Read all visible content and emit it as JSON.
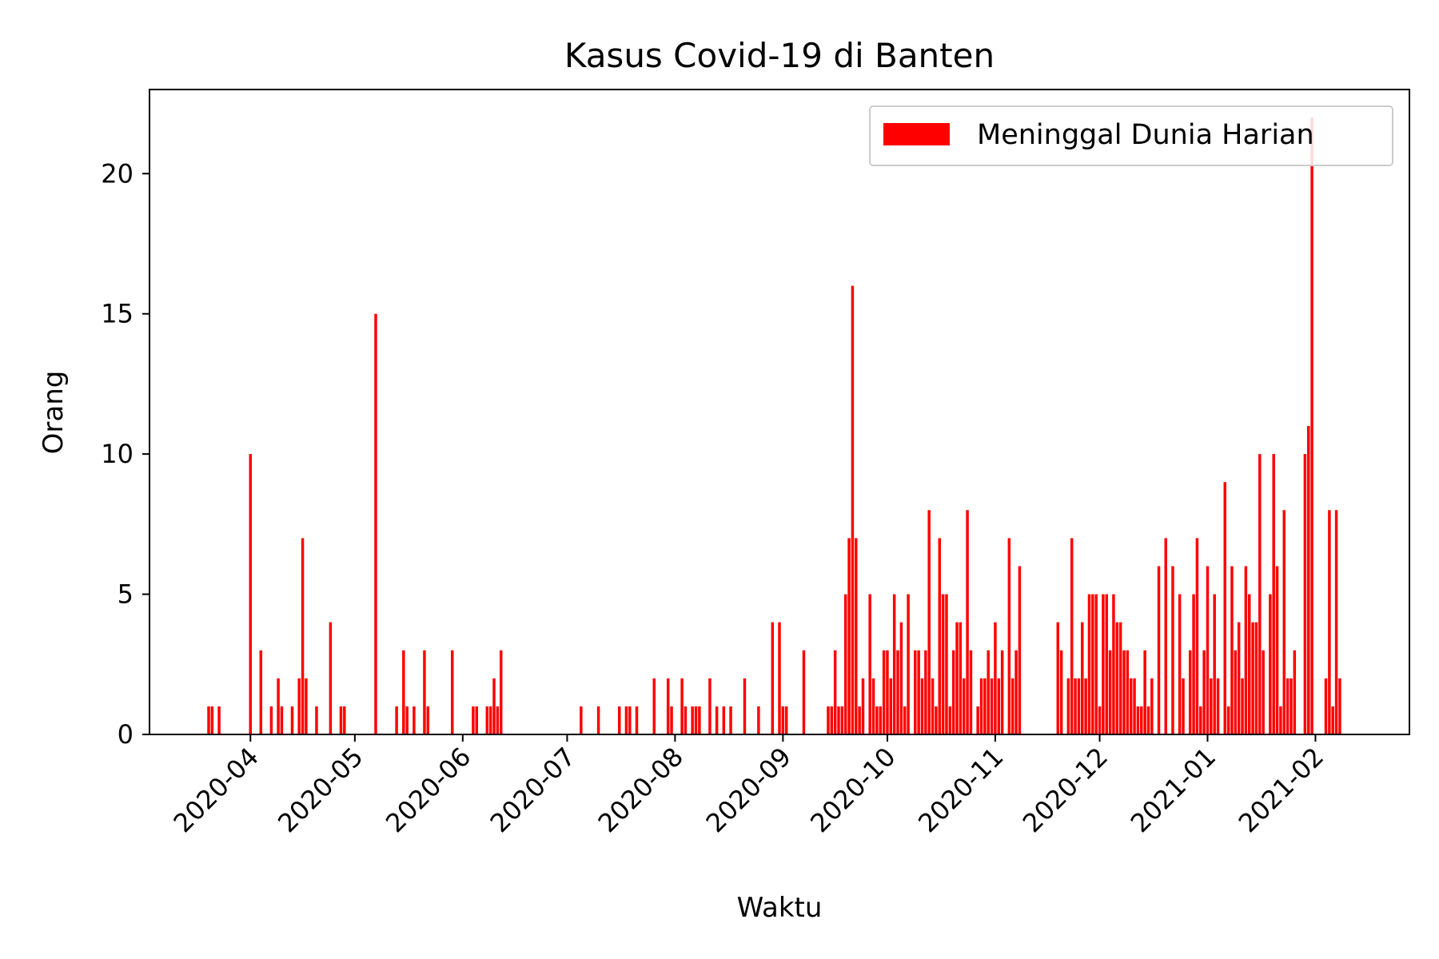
{
  "chart_data": {
    "type": "bar",
    "title": "Kasus Covid-19 di Banten",
    "xlabel": "Waktu",
    "ylabel": "Orang",
    "x_axis_type": "date",
    "xlim": [
      "2020-03-03",
      "2021-02-28"
    ],
    "ylim": [
      0,
      23
    ],
    "yticks": [
      0,
      5,
      10,
      15,
      20
    ],
    "xticks": [
      "2020-04-01",
      "2020-05-01",
      "2020-06-01",
      "2020-07-01",
      "2020-08-01",
      "2020-09-01",
      "2020-10-01",
      "2020-11-01",
      "2020-12-01",
      "2021-01-01",
      "2021-02-01"
    ],
    "xtick_labels": [
      "2020-04",
      "2020-05",
      "2020-06",
      "2020-07",
      "2020-08",
      "2020-09",
      "2020-10",
      "2020-11",
      "2020-12",
      "2021-01",
      "2021-02"
    ],
    "legend_position": "top-right",
    "grid": false,
    "color": "#ff0000",
    "series": [
      {
        "name": "Meninggal Dunia Harian",
        "points": [
          [
            "2020-03-20",
            1
          ],
          [
            "2020-03-21",
            1
          ],
          [
            "2020-03-23",
            1
          ],
          [
            "2020-04-01",
            10
          ],
          [
            "2020-04-04",
            3
          ],
          [
            "2020-04-07",
            1
          ],
          [
            "2020-04-09",
            2
          ],
          [
            "2020-04-10",
            1
          ],
          [
            "2020-04-13",
            1
          ],
          [
            "2020-04-15",
            2
          ],
          [
            "2020-04-16",
            7
          ],
          [
            "2020-04-17",
            2
          ],
          [
            "2020-04-20",
            1
          ],
          [
            "2020-04-24",
            4
          ],
          [
            "2020-04-27",
            1
          ],
          [
            "2020-04-28",
            1
          ],
          [
            "2020-05-07",
            15
          ],
          [
            "2020-05-13",
            1
          ],
          [
            "2020-05-15",
            3
          ],
          [
            "2020-05-16",
            1
          ],
          [
            "2020-05-18",
            1
          ],
          [
            "2020-05-21",
            3
          ],
          [
            "2020-05-22",
            1
          ],
          [
            "2020-05-29",
            3
          ],
          [
            "2020-06-04",
            1
          ],
          [
            "2020-06-05",
            1
          ],
          [
            "2020-06-08",
            1
          ],
          [
            "2020-06-09",
            1
          ],
          [
            "2020-06-10",
            2
          ],
          [
            "2020-06-11",
            1
          ],
          [
            "2020-06-12",
            3
          ],
          [
            "2020-07-05",
            1
          ],
          [
            "2020-07-10",
            1
          ],
          [
            "2020-07-16",
            1
          ],
          [
            "2020-07-18",
            1
          ],
          [
            "2020-07-19",
            1
          ],
          [
            "2020-07-21",
            1
          ],
          [
            "2020-07-26",
            2
          ],
          [
            "2020-07-30",
            2
          ],
          [
            "2020-07-31",
            1
          ],
          [
            "2020-08-03",
            2
          ],
          [
            "2020-08-04",
            1
          ],
          [
            "2020-08-06",
            1
          ],
          [
            "2020-08-07",
            1
          ],
          [
            "2020-08-08",
            1
          ],
          [
            "2020-08-11",
            2
          ],
          [
            "2020-08-13",
            1
          ],
          [
            "2020-08-15",
            1
          ],
          [
            "2020-08-17",
            1
          ],
          [
            "2020-08-21",
            2
          ],
          [
            "2020-08-25",
            1
          ],
          [
            "2020-08-29",
            4
          ],
          [
            "2020-08-31",
            4
          ],
          [
            "2020-09-01",
            1
          ],
          [
            "2020-09-02",
            1
          ],
          [
            "2020-09-07",
            3
          ],
          [
            "2020-09-14",
            1
          ],
          [
            "2020-09-15",
            1
          ],
          [
            "2020-09-16",
            3
          ],
          [
            "2020-09-17",
            1
          ],
          [
            "2020-09-18",
            1
          ],
          [
            "2020-09-19",
            5
          ],
          [
            "2020-09-20",
            7
          ],
          [
            "2020-09-21",
            16
          ],
          [
            "2020-09-22",
            7
          ],
          [
            "2020-09-23",
            1
          ],
          [
            "2020-09-24",
            2
          ],
          [
            "2020-09-26",
            5
          ],
          [
            "2020-09-27",
            2
          ],
          [
            "2020-09-28",
            1
          ],
          [
            "2020-09-29",
            1
          ],
          [
            "2020-09-30",
            3
          ],
          [
            "2020-10-01",
            3
          ],
          [
            "2020-10-02",
            2
          ],
          [
            "2020-10-03",
            5
          ],
          [
            "2020-10-04",
            3
          ],
          [
            "2020-10-05",
            4
          ],
          [
            "2020-10-06",
            1
          ],
          [
            "2020-10-07",
            5
          ],
          [
            "2020-10-09",
            3
          ],
          [
            "2020-10-10",
            3
          ],
          [
            "2020-10-11",
            2
          ],
          [
            "2020-10-12",
            3
          ],
          [
            "2020-10-13",
            8
          ],
          [
            "2020-10-14",
            2
          ],
          [
            "2020-10-15",
            1
          ],
          [
            "2020-10-16",
            7
          ],
          [
            "2020-10-17",
            5
          ],
          [
            "2020-10-18",
            5
          ],
          [
            "2020-10-19",
            1
          ],
          [
            "2020-10-20",
            3
          ],
          [
            "2020-10-21",
            4
          ],
          [
            "2020-10-22",
            4
          ],
          [
            "2020-10-23",
            2
          ],
          [
            "2020-10-24",
            8
          ],
          [
            "2020-10-25",
            3
          ],
          [
            "2020-10-27",
            1
          ],
          [
            "2020-10-28",
            2
          ],
          [
            "2020-10-29",
            2
          ],
          [
            "2020-10-30",
            3
          ],
          [
            "2020-10-31",
            2
          ],
          [
            "2020-11-01",
            4
          ],
          [
            "2020-11-02",
            2
          ],
          [
            "2020-11-03",
            3
          ],
          [
            "2020-11-05",
            7
          ],
          [
            "2020-11-06",
            2
          ],
          [
            "2020-11-07",
            3
          ],
          [
            "2020-11-08",
            6
          ],
          [
            "2020-11-19",
            4
          ],
          [
            "2020-11-20",
            3
          ],
          [
            "2020-11-22",
            2
          ],
          [
            "2020-11-23",
            7
          ],
          [
            "2020-11-24",
            2
          ],
          [
            "2020-11-25",
            2
          ],
          [
            "2020-11-26",
            4
          ],
          [
            "2020-11-27",
            2
          ],
          [
            "2020-11-28",
            5
          ],
          [
            "2020-11-29",
            5
          ],
          [
            "2020-11-30",
            5
          ],
          [
            "2020-12-01",
            1
          ],
          [
            "2020-12-02",
            5
          ],
          [
            "2020-12-03",
            5
          ],
          [
            "2020-12-04",
            3
          ],
          [
            "2020-12-05",
            5
          ],
          [
            "2020-12-06",
            4
          ],
          [
            "2020-12-07",
            4
          ],
          [
            "2020-12-08",
            3
          ],
          [
            "2020-12-09",
            3
          ],
          [
            "2020-12-10",
            2
          ],
          [
            "2020-12-11",
            2
          ],
          [
            "2020-12-12",
            1
          ],
          [
            "2020-12-13",
            1
          ],
          [
            "2020-12-14",
            3
          ],
          [
            "2020-12-15",
            1
          ],
          [
            "2020-12-16",
            2
          ],
          [
            "2020-12-18",
            6
          ],
          [
            "2020-12-20",
            7
          ],
          [
            "2020-12-22",
            6
          ],
          [
            "2020-12-24",
            5
          ],
          [
            "2020-12-25",
            2
          ],
          [
            "2020-12-27",
            3
          ],
          [
            "2020-12-28",
            5
          ],
          [
            "2020-12-29",
            7
          ],
          [
            "2020-12-30",
            1
          ],
          [
            "2020-12-31",
            3
          ],
          [
            "2021-01-01",
            6
          ],
          [
            "2021-01-02",
            2
          ],
          [
            "2021-01-03",
            5
          ],
          [
            "2021-01-04",
            2
          ],
          [
            "2021-01-06",
            9
          ],
          [
            "2021-01-07",
            1
          ],
          [
            "2021-01-08",
            6
          ],
          [
            "2021-01-09",
            3
          ],
          [
            "2021-01-10",
            4
          ],
          [
            "2021-01-11",
            2
          ],
          [
            "2021-01-12",
            6
          ],
          [
            "2021-01-13",
            5
          ],
          [
            "2021-01-14",
            4
          ],
          [
            "2021-01-15",
            4
          ],
          [
            "2021-01-16",
            10
          ],
          [
            "2021-01-17",
            3
          ],
          [
            "2021-01-19",
            5
          ],
          [
            "2021-01-20",
            10
          ],
          [
            "2021-01-21",
            6
          ],
          [
            "2021-01-22",
            1
          ],
          [
            "2021-01-23",
            8
          ],
          [
            "2021-01-24",
            2
          ],
          [
            "2021-01-25",
            2
          ],
          [
            "2021-01-26",
            3
          ],
          [
            "2021-01-29",
            10
          ],
          [
            "2021-01-30",
            11
          ],
          [
            "2021-01-31",
            22
          ],
          [
            "2021-02-04",
            2
          ],
          [
            "2021-02-05",
            8
          ],
          [
            "2021-02-06",
            1
          ],
          [
            "2021-02-07",
            8
          ],
          [
            "2021-02-08",
            2
          ]
        ]
      }
    ]
  }
}
